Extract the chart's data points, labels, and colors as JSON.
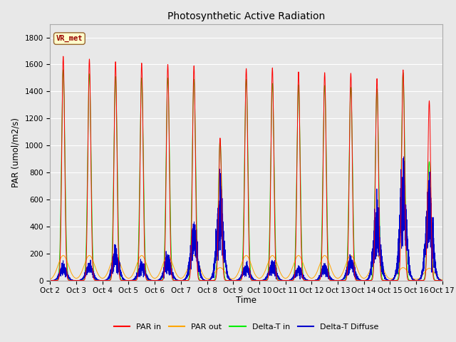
{
  "title": "Photosynthetic Active Radiation",
  "ylabel": "PAR (umol/m2/s)",
  "xlabel": "Time",
  "xlim": [
    0,
    15
  ],
  "ylim": [
    0,
    1900
  ],
  "yticks": [
    0,
    200,
    400,
    600,
    800,
    1000,
    1200,
    1400,
    1600,
    1800
  ],
  "xtick_labels": [
    "Oct 2",
    "Oct 3",
    "Oct 4",
    "Oct 5",
    "Oct 6",
    "Oct 7",
    "Oct 8",
    "Oct 9",
    "Oct 10",
    "Oct 11",
    "Oct 12",
    "Oct 13",
    "Oct 14",
    "Oct 15",
    "Oct 16",
    "Oct 17"
  ],
  "xtick_positions": [
    0,
    1,
    2,
    3,
    4,
    5,
    6,
    7,
    8,
    9,
    10,
    11,
    12,
    13,
    14,
    15
  ],
  "plot_bg_color": "#e8e8e8",
  "fig_bg_color": "#e8e8e8",
  "grid_color": "#ffffff",
  "colors": {
    "PAR_in": "#ff0000",
    "PAR_out": "#ffa500",
    "Delta_T_in": "#00ee00",
    "Delta_T_Diffuse": "#0000cc"
  },
  "legend_labels": [
    "PAR in",
    "PAR out",
    "Delta-T in",
    "Delta-T Diffuse"
  ],
  "vr_met_box_color": "#ffffcc",
  "vr_met_border_color": "#996633",
  "vr_met_text_color": "#990000",
  "day_peaks": {
    "PAR_in": [
      1660,
      1640,
      1620,
      1610,
      1600,
      1590,
      1055,
      1570,
      1575,
      1545,
      1540,
      1535,
      1495,
      1560,
      1330
    ],
    "PAR_out": [
      185,
      185,
      185,
      185,
      185,
      185,
      95,
      185,
      185,
      185,
      185,
      185,
      185,
      95,
      90
    ],
    "Delta_T_in": [
      1560,
      1530,
      1510,
      1500,
      1500,
      1490,
      1040,
      1490,
      1460,
      1450,
      1445,
      1430,
      1420,
      1540,
      880
    ],
    "Delta_T_Diffuse": [
      85,
      95,
      165,
      95,
      130,
      300,
      480,
      90,
      105,
      75,
      80,
      130,
      400,
      580,
      515
    ]
  }
}
